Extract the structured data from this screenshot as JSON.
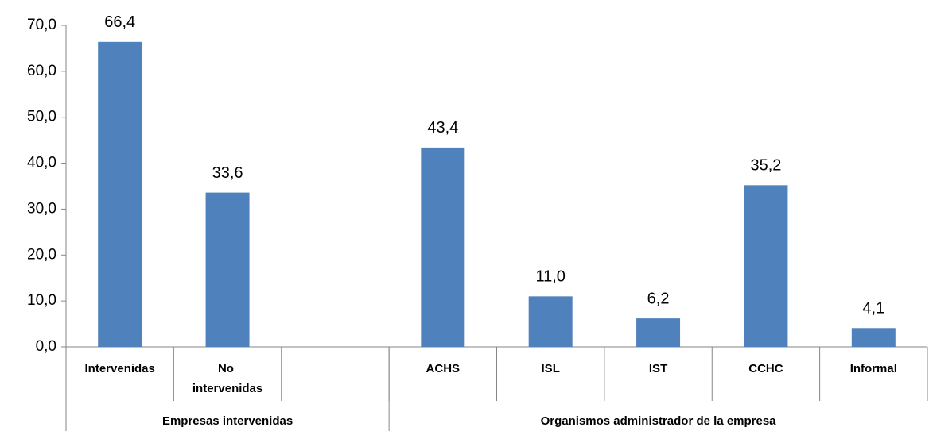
{
  "chart_data": {
    "type": "bar",
    "categories": [
      "Intervenidas",
      "No intervenidas",
      null,
      "ACHS",
      "ISL",
      "IST",
      "CCHC",
      "Informal"
    ],
    "values": [
      66.4,
      33.6,
      null,
      43.4,
      11.0,
      6.2,
      35.2,
      4.1
    ],
    "value_labels": [
      "66,4",
      "33,6",
      null,
      "43,4",
      "11,0",
      "6,2",
      "35,2",
      "4,1"
    ],
    "groups": [
      {
        "name": "Empresas intervenidas",
        "size": 3
      },
      {
        "name": "Organismos administrador de la empresa",
        "size": 5
      }
    ],
    "color": "#4f81bd",
    "ylim": [
      0,
      70
    ],
    "yticks": [
      {
        "value": 0,
        "label": "0,0"
      },
      {
        "value": 10,
        "label": "10,0"
      },
      {
        "value": 20,
        "label": "20,0"
      },
      {
        "value": 30,
        "label": "30,0"
      },
      {
        "value": 40,
        "label": "40,0"
      },
      {
        "value": 50,
        "label": "50,0"
      },
      {
        "value": 60,
        "label": "60,0"
      },
      {
        "value": 70,
        "label": "70,0"
      }
    ],
    "grid": false
  }
}
